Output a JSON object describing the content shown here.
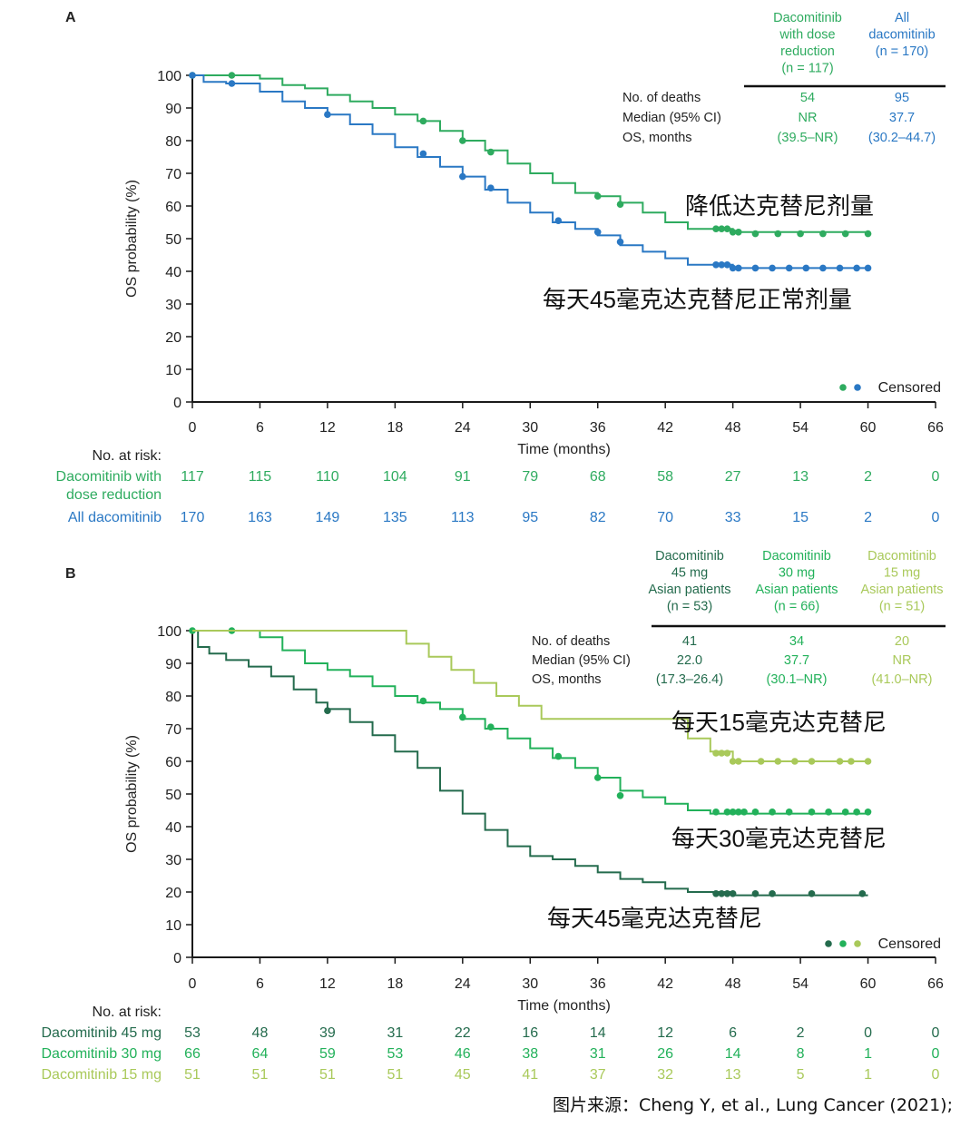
{
  "colors": {
    "green": "#2eab5f",
    "blue": "#2a78c4",
    "dark_green": "#246b4d",
    "mid_green": "#22b15a",
    "light_green": "#a9c95a",
    "axis": "#1a1a1a",
    "rule": "#111111",
    "text": "#222222"
  },
  "caption": "图片来源：Cheng Y, et al., Lung Cancer (2021);",
  "chart_data": [
    {
      "panel": "A",
      "type": "line",
      "xlabel": "Time (months)",
      "ylabel": "OS probability (%)",
      "xlim": [
        0,
        66
      ],
      "ylim": [
        0,
        100
      ],
      "xticks": [
        "0",
        "6",
        "12",
        "18",
        "24",
        "30",
        "36",
        "42",
        "48",
        "54",
        "60",
        "66"
      ],
      "yticks": [
        "0",
        "10",
        "20",
        "30",
        "40",
        "50",
        "60",
        "70",
        "80",
        "90",
        "100"
      ],
      "censored_label": "Censored",
      "legend": "bottom-right",
      "table": {
        "columns": [
          {
            "lines": [
              "Dacomitinib",
              "with dose",
              "reduction",
              "(n = 117)"
            ],
            "color_key": "green"
          },
          {
            "lines": [
              "All",
              "dacomitinib",
              "(n = 170)"
            ],
            "color_key": "blue"
          }
        ],
        "rows": [
          {
            "label": "No. of deaths",
            "values": [
              "54",
              "95"
            ]
          },
          {
            "label": "Median (95% CI)",
            "values": [
              "NR",
              "37.7"
            ]
          },
          {
            "label": "OS, months",
            "values": [
              "(39.5–NR)",
              "(30.2–44.7)"
            ]
          }
        ]
      },
      "annotations": [
        {
          "text": "降低达克替尼剂量",
          "x": 46,
          "y": 58
        },
        {
          "text": "每天45毫克达克替尼正常剂量",
          "x": 31,
          "y": 30
        }
      ],
      "series": [
        {
          "name": "Dacomitinib with dose reduction",
          "color_key": "green",
          "x": [
            0,
            2,
            6,
            8,
            10,
            12,
            14,
            16,
            18,
            20,
            22,
            24,
            26,
            28,
            30,
            32,
            34,
            36,
            38,
            40,
            42,
            44,
            46,
            48,
            60
          ],
          "y": [
            100,
            100,
            99,
            97,
            96,
            94,
            92,
            90,
            88,
            86,
            83,
            80,
            77,
            73,
            70,
            67,
            64,
            63,
            61,
            58,
            55,
            53,
            53,
            52,
            52
          ],
          "censored": [
            [
              0,
              100
            ],
            [
              3.5,
              100
            ],
            [
              20.5,
              86
            ],
            [
              24,
              80
            ],
            [
              26.5,
              76.5
            ],
            [
              36,
              63
            ],
            [
              38,
              60.5
            ],
            [
              46.5,
              53
            ],
            [
              47,
              53
            ],
            [
              47.5,
              53
            ],
            [
              48,
              52
            ],
            [
              48.5,
              52
            ],
            [
              50,
              51.5
            ],
            [
              52,
              51.5
            ],
            [
              54,
              51.5
            ],
            [
              56,
              51.5
            ],
            [
              58,
              51.5
            ],
            [
              60,
              51.5
            ]
          ],
          "at_risk": [
            "117",
            "115",
            "110",
            "104",
            "91",
            "79",
            "68",
            "58",
            "27",
            "13",
            "2",
            "0"
          ]
        },
        {
          "name": "All dacomitinib",
          "color_key": "blue",
          "x": [
            0,
            1,
            3,
            6,
            8,
            10,
            12,
            14,
            16,
            18,
            20,
            22,
            24,
            26,
            28,
            30,
            32,
            34,
            36,
            38,
            40,
            42,
            44,
            46,
            48,
            60
          ],
          "y": [
            100,
            98,
            97.5,
            95,
            92,
            90,
            88,
            85,
            82,
            78,
            75,
            72,
            69,
            65,
            61,
            58,
            55,
            53,
            51,
            48,
            46,
            44,
            42,
            42,
            41,
            41
          ],
          "censored": [
            [
              0,
              100
            ],
            [
              3.5,
              97.5
            ],
            [
              12,
              88
            ],
            [
              20.5,
              76
            ],
            [
              24,
              69
            ],
            [
              26.5,
              65.5
            ],
            [
              32.5,
              55.5
            ],
            [
              36,
              52
            ],
            [
              38,
              49
            ],
            [
              46.5,
              42
            ],
            [
              47,
              42
            ],
            [
              47.5,
              42
            ],
            [
              48,
              41
            ],
            [
              48.5,
              41
            ],
            [
              50,
              41
            ],
            [
              51.5,
              41
            ],
            [
              53,
              41
            ],
            [
              54.5,
              41
            ],
            [
              56,
              41
            ],
            [
              57.5,
              41
            ],
            [
              59,
              41
            ],
            [
              60,
              41
            ]
          ],
          "at_risk": [
            "170",
            "163",
            "149",
            "135",
            "113",
            "95",
            "82",
            "70",
            "33",
            "15",
            "2",
            "0"
          ]
        }
      ],
      "at_risk_header": "No. at risk:",
      "at_risk_labels": [
        {
          "lines": [
            "Dacomitinib with",
            "dose reduction"
          ],
          "color_key": "green"
        },
        {
          "lines": [
            "All dacomitinib"
          ],
          "color_key": "blue"
        }
      ]
    },
    {
      "panel": "B",
      "type": "line",
      "xlabel": "Time (months)",
      "ylabel": "OS probability (%)",
      "xlim": [
        0,
        66
      ],
      "ylim": [
        0,
        100
      ],
      "xticks": [
        "0",
        "6",
        "12",
        "18",
        "24",
        "30",
        "36",
        "42",
        "48",
        "54",
        "60",
        "66"
      ],
      "yticks": [
        "0",
        "10",
        "20",
        "30",
        "40",
        "50",
        "60",
        "70",
        "80",
        "90",
        "100"
      ],
      "censored_label": "Censored",
      "legend": "bottom-right",
      "table": {
        "columns": [
          {
            "lines": [
              "Dacomitinib",
              "45 mg",
              "Asian patients",
              "(n = 53)"
            ],
            "color_key": "dark_green"
          },
          {
            "lines": [
              "Dacomitinib",
              "30 mg",
              "Asian patients",
              "(n = 66)"
            ],
            "color_key": "mid_green"
          },
          {
            "lines": [
              "Dacomitinib",
              "15 mg",
              "Asian patients",
              "(n = 51)"
            ],
            "color_key": "light_green"
          }
        ],
        "rows": [
          {
            "label": "No. of deaths",
            "values": [
              "41",
              "34",
              "20"
            ]
          },
          {
            "label": "Median (95% CI)",
            "values": [
              "22.0",
              "37.7",
              "NR"
            ]
          },
          {
            "label": "OS, months",
            "values": [
              "(17.3–26.4)",
              "(30.1–NR)",
              "(41.0–NR)"
            ]
          }
        ]
      },
      "annotations": [
        {
          "text": "每天15毫克达克替尼",
          "x": 43,
          "y": 69
        },
        {
          "text": "每天30毫克达克替尼",
          "x": 43,
          "y": 33
        },
        {
          "text": "每天45毫克达克替尼",
          "x": 32,
          "y": 13
        }
      ],
      "series": [
        {
          "name": "Dacomitinib 45 mg",
          "color_key": "dark_green",
          "x": [
            0,
            0.5,
            1.5,
            3,
            5,
            7,
            9,
            11,
            12,
            14,
            16,
            18,
            20,
            22,
            24,
            26,
            28,
            30,
            32,
            34,
            36,
            38,
            40,
            42,
            44,
            46,
            48,
            60
          ],
          "y": [
            100,
            95,
            93,
            91,
            89,
            86,
            82,
            78,
            76,
            72,
            68,
            63,
            58,
            51,
            44,
            39,
            34,
            31,
            30,
            28,
            26,
            24,
            23,
            21,
            20,
            20,
            19,
            19
          ],
          "censored": [
            [
              12,
              75.5
            ],
            [
              46.5,
              19.5
            ],
            [
              47,
              19.5
            ],
            [
              47.5,
              19.5
            ],
            [
              48,
              19.5
            ],
            [
              50,
              19.5
            ],
            [
              51.5,
              19.5
            ],
            [
              55,
              19.5
            ],
            [
              59.5,
              19.5
            ]
          ],
          "at_risk": [
            "53",
            "48",
            "39",
            "31",
            "22",
            "16",
            "14",
            "12",
            "6",
            "2",
            "0",
            "0"
          ]
        },
        {
          "name": "Dacomitinib 30 mg",
          "color_key": "mid_green",
          "x": [
            0,
            3,
            6,
            8,
            10,
            12,
            14,
            16,
            18,
            20,
            22,
            24,
            26,
            28,
            30,
            32,
            34,
            36,
            38,
            40,
            42,
            44,
            46,
            48,
            60
          ],
          "y": [
            100,
            100,
            98,
            94,
            90,
            88,
            86,
            83,
            80,
            78,
            76,
            73,
            70,
            67,
            64,
            61,
            58,
            55,
            51,
            49,
            47,
            45,
            44,
            44,
            44
          ],
          "censored": [
            [
              0,
              100
            ],
            [
              3.5,
              100
            ],
            [
              20.5,
              78.5
            ],
            [
              24,
              73.5
            ],
            [
              26.5,
              70.5
            ],
            [
              32.5,
              61.5
            ],
            [
              36,
              55
            ],
            [
              38,
              49.5
            ],
            [
              46.5,
              44.5
            ],
            [
              47.5,
              44.5
            ],
            [
              48,
              44.5
            ],
            [
              48.5,
              44.5
            ],
            [
              49,
              44.5
            ],
            [
              50,
              44.5
            ],
            [
              51.5,
              44.5
            ],
            [
              53,
              44.5
            ],
            [
              55,
              44.5
            ],
            [
              56.5,
              44.5
            ],
            [
              58,
              44.5
            ],
            [
              59,
              44.5
            ],
            [
              60,
              44.5
            ]
          ],
          "at_risk": [
            "66",
            "64",
            "59",
            "53",
            "46",
            "38",
            "31",
            "26",
            "14",
            "8",
            "1",
            "0"
          ]
        },
        {
          "name": "Dacomitinib 15 mg",
          "color_key": "light_green",
          "x": [
            0,
            18,
            19,
            21,
            23,
            25,
            27,
            29,
            31,
            33,
            36,
            39,
            42,
            44,
            46,
            48,
            60
          ],
          "y": [
            100,
            100,
            96,
            92,
            88,
            84,
            80,
            77,
            73,
            73,
            73,
            73,
            73,
            67,
            63,
            60,
            60
          ],
          "censored": [
            [
              46.5,
              62.5
            ],
            [
              47,
              62.5
            ],
            [
              47.5,
              62.5
            ],
            [
              48,
              60
            ],
            [
              48.5,
              60
            ],
            [
              50.5,
              60
            ],
            [
              52,
              60
            ],
            [
              53.5,
              60
            ],
            [
              55,
              60
            ],
            [
              57.5,
              60
            ],
            [
              58.5,
              60
            ],
            [
              60,
              60
            ]
          ],
          "at_risk": [
            "51",
            "51",
            "51",
            "51",
            "45",
            "41",
            "37",
            "32",
            "13",
            "5",
            "1",
            "0"
          ]
        }
      ],
      "at_risk_header": "No. at risk:",
      "at_risk_labels": [
        {
          "lines": [
            "Dacomitinib 45 mg"
          ],
          "color_key": "dark_green"
        },
        {
          "lines": [
            "Dacomitinib 30 mg"
          ],
          "color_key": "mid_green"
        },
        {
          "lines": [
            "Dacomitinib 15 mg"
          ],
          "color_key": "light_green"
        }
      ]
    }
  ]
}
